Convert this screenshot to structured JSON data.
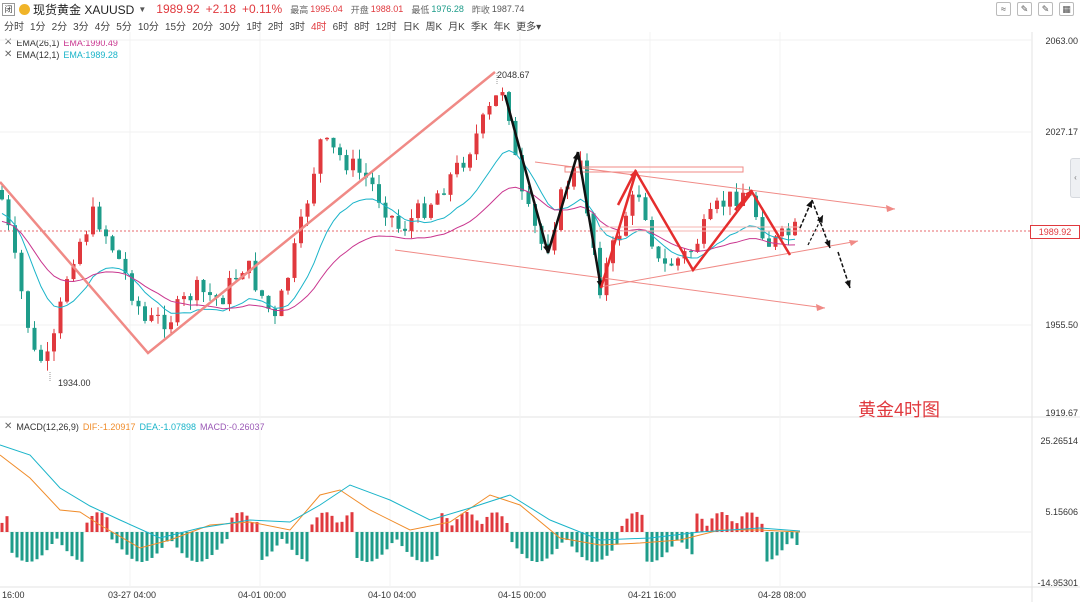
{
  "header": {
    "logo": "闭",
    "symbol": "现货黄金 XAUUSD",
    "price": "1989.92",
    "change": "+2.18",
    "change_pct": "+0.11%",
    "high_label": "最高",
    "high": "1995.04",
    "open_label": "开盘",
    "open": "1988.01",
    "low_label": "最低",
    "low": "1976.28",
    "prev_label": "昨收",
    "prev": "1987.74",
    "tools": [
      "≈",
      "✎",
      "✎",
      "▦"
    ]
  },
  "periods": [
    "分时",
    "1分",
    "2分",
    "3分",
    "4分",
    "5分",
    "10分",
    "15分",
    "20分",
    "30分",
    "1时",
    "2时",
    "3时",
    "4时",
    "6时",
    "8时",
    "12时",
    "日K",
    "周K",
    "月K",
    "季K",
    "年K",
    "更多▾"
  ],
  "active_period": "4时",
  "ema_legend": [
    {
      "name": "EMA(26,1)",
      "value": "EMA:1990.49",
      "color": "#c9368f"
    },
    {
      "name": "EMA(12,1)",
      "value": "EMA:1989.28",
      "color": "#1ab4c9"
    }
  ],
  "macd_legend": {
    "name": "MACD(12,26,9)",
    "dif": "DIF:-1.20917",
    "dif_color": "#f08c2a",
    "dea": "DEA:-1.07898",
    "dea_color": "#1ab4c9",
    "macd": "MACD:-0.26037",
    "macd_color": "#9b59b6"
  },
  "price_axis": [
    "2063.00",
    "2027.17",
    "1989.92",
    "1955.50",
    "1919.67"
  ],
  "macd_axis": [
    "25.26514",
    "5.15606",
    "-14.95301"
  ],
  "time_axis": [
    "16:00",
    "03-27 04:00",
    "04-01 00:00",
    "04-10 04:00",
    "04-15 00:00",
    "04-21 16:00",
    "04-28 08:00"
  ],
  "annotations": {
    "high": "2048.67",
    "low": "1934.00"
  },
  "watermark": "黄金4时图",
  "colors": {
    "up": "#e0393e",
    "down": "#1e9c8a",
    "ema26": "#c9368f",
    "ema12": "#1ab4c9"
  }
}
